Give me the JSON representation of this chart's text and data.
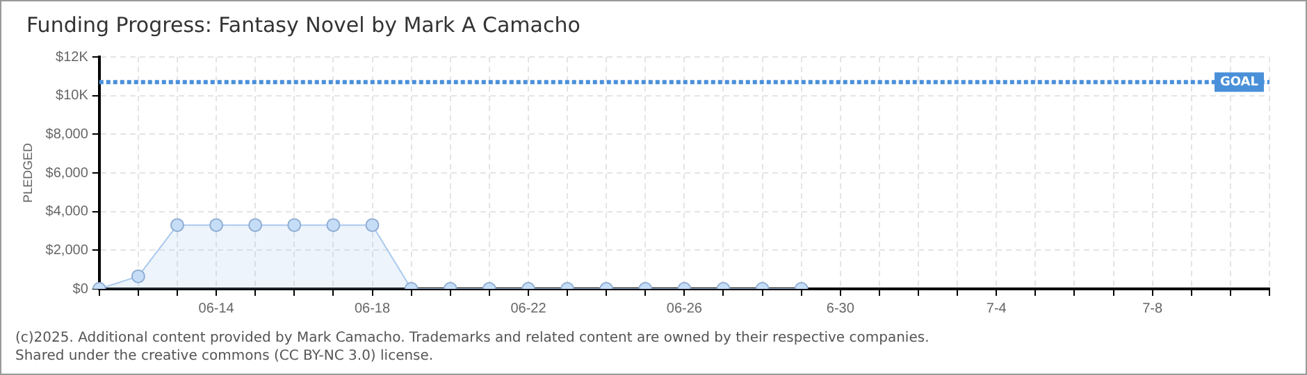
{
  "chart_data": {
    "type": "area",
    "title": "Funding Progress: Fantasy Novel by Mark A Camacho",
    "ylabel": "PLEDGED",
    "categories": [
      null,
      null,
      null,
      "06-14",
      null,
      null,
      null,
      "06-18",
      null,
      null,
      null,
      "06-22",
      null,
      null,
      null,
      "06-26",
      null,
      null,
      null,
      "6-30",
      null,
      null,
      null,
      "7-4",
      null,
      null,
      null,
      "7-8",
      null,
      null,
      null
    ],
    "series": [
      {
        "color": "#a9c9ee",
        "values": [
          0,
          650,
          3300,
          3300,
          3300,
          3300,
          3300,
          3300,
          0,
          0,
          0,
          0,
          0,
          0,
          0,
          0,
          0,
          0,
          0,
          null,
          null,
          null,
          null,
          null,
          null,
          null,
          null,
          null,
          null,
          null,
          null
        ]
      }
    ],
    "ylim": [
      0,
      12000
    ],
    "yticks": [
      {
        "value": 0,
        "label": "$0"
      },
      {
        "value": 2000,
        "label": "$2,000"
      },
      {
        "value": 4000,
        "label": "$4,000"
      },
      {
        "value": 6000,
        "label": "$6,000"
      },
      {
        "value": 8000,
        "label": "$8,000"
      },
      {
        "value": 10000,
        "label": "$10K"
      },
      {
        "value": 12000,
        "label": "$12K"
      }
    ],
    "ref_lines": [
      {
        "axis": "y",
        "value": 10700,
        "label": "GOAL",
        "color": "#4a90d9",
        "line_style": "dotted"
      }
    ],
    "grid": true,
    "legend": false,
    "marker": "circle",
    "annotations": [
      "(c)2025. Additional content provided by Mark Camacho. Trademarks and related content are owned by their respective companies.",
      "Shared under the creative commons (CC BY-NC 3.0) license."
    ]
  }
}
